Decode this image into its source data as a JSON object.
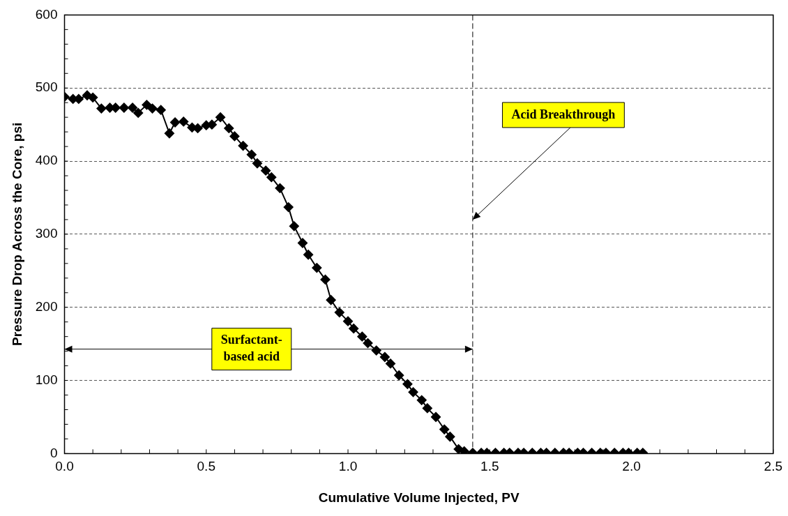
{
  "chart_data": {
    "type": "line",
    "xlabel": "Cumulative Volume Injected, PV",
    "ylabel": "Pressure Drop Across the Core, psi",
    "x": [
      0.0,
      0.03,
      0.05,
      0.08,
      0.1,
      0.13,
      0.16,
      0.18,
      0.21,
      0.24,
      0.26,
      0.29,
      0.31,
      0.34,
      0.37,
      0.39,
      0.42,
      0.45,
      0.47,
      0.5,
      0.52,
      0.55,
      0.58,
      0.6,
      0.63,
      0.66,
      0.68,
      0.71,
      0.73,
      0.76,
      0.79,
      0.81,
      0.84,
      0.86,
      0.89,
      0.92,
      0.94,
      0.97,
      1.0,
      1.02,
      1.05,
      1.07,
      1.1,
      1.13,
      1.15,
      1.18,
      1.21,
      1.23,
      1.26,
      1.28,
      1.31,
      1.34,
      1.36,
      1.39,
      1.41,
      1.44,
      1.47,
      1.49,
      1.52,
      1.55,
      1.57,
      1.6,
      1.62,
      1.65,
      1.68,
      1.7,
      1.73,
      1.76,
      1.78,
      1.81,
      1.83,
      1.86,
      1.89,
      1.91,
      1.94,
      1.97,
      1.99,
      2.02,
      2.04
    ],
    "series": [
      {
        "color": "#000000",
        "values": [
          488,
          485,
          485,
          490,
          487,
          472,
          473,
          473,
          473,
          473,
          466,
          477,
          472,
          470,
          438,
          453,
          454,
          446,
          445,
          449,
          450,
          460,
          445,
          434,
          421,
          409,
          397,
          387,
          378,
          363,
          337,
          311,
          288,
          272,
          254,
          238,
          210,
          193,
          181,
          171,
          160,
          151,
          141,
          132,
          123,
          107,
          95,
          84,
          73,
          62,
          50,
          33,
          23,
          6,
          3,
          1,
          1,
          1,
          1,
          1,
          1,
          1,
          1,
          1,
          1,
          1,
          1,
          1,
          1,
          1,
          1,
          1,
          1,
          1,
          1,
          1,
          1,
          1,
          1
        ]
      }
    ],
    "xlim": [
      0,
      2.5
    ],
    "xticks": [
      {
        "value": 0,
        "label": "0.0"
      },
      {
        "value": 0.5,
        "label": "0.5"
      },
      {
        "value": 1,
        "label": "1.0"
      },
      {
        "value": 1.5,
        "label": "1.5"
      },
      {
        "value": 2,
        "label": "2.0"
      },
      {
        "value": 2.5,
        "label": "2.5"
      }
    ],
    "ylim": [
      0,
      600
    ],
    "yticks": [
      0,
      100,
      200,
      300,
      400,
      500,
      600
    ],
    "grid": "y",
    "legend": false,
    "marker": "diamond",
    "line_style": "solid",
    "ref_lines": [
      {
        "axis": "x",
        "value": 1.44,
        "color": "#000000",
        "line_style": "dashed"
      }
    ],
    "annotations": [
      {
        "text": "Acid Breakthrough",
        "x": 1.44,
        "y": 320
      },
      "Surfactant-based acid"
    ]
  }
}
